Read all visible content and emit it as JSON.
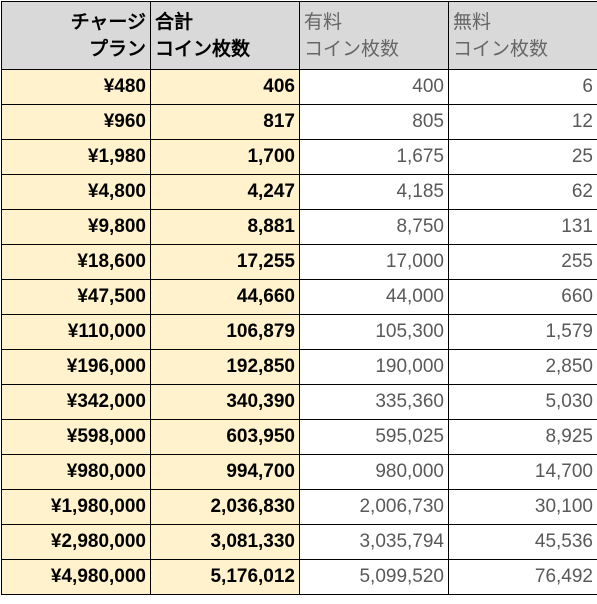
{
  "table": {
    "header": [
      [
        "チャージ",
        "プラン"
      ],
      [
        "合計",
        "コイン枚数"
      ],
      [
        "有料",
        "コイン枚数"
      ],
      [
        "無料",
        "コイン枚数"
      ]
    ],
    "rows": [
      [
        "¥480",
        "406",
        "400",
        "6"
      ],
      [
        "¥960",
        "817",
        "805",
        "12"
      ],
      [
        "¥1,980",
        "1,700",
        "1,675",
        "25"
      ],
      [
        "¥4,800",
        "4,247",
        "4,185",
        "62"
      ],
      [
        "¥9,800",
        "8,881",
        "8,750",
        "131"
      ],
      [
        "¥18,600",
        "17,255",
        "17,000",
        "255"
      ],
      [
        "¥47,500",
        "44,660",
        "44,000",
        "660"
      ],
      [
        "¥110,000",
        "106,879",
        "105,300",
        "1,579"
      ],
      [
        "¥196,000",
        "192,850",
        "190,000",
        "2,850"
      ],
      [
        "¥342,000",
        "340,390",
        "335,360",
        "5,030"
      ],
      [
        "¥598,000",
        "603,950",
        "595,025",
        "8,925"
      ],
      [
        "¥980,000",
        "994,700",
        "980,000",
        "14,700"
      ],
      [
        "¥1,980,000",
        "2,036,830",
        "2,006,730",
        "30,100"
      ],
      [
        "¥2,980,000",
        "3,081,330",
        "3,035,794",
        "45,536"
      ],
      [
        "¥4,980,000",
        "5,176,012",
        "5,099,520",
        "76,492"
      ]
    ]
  }
}
